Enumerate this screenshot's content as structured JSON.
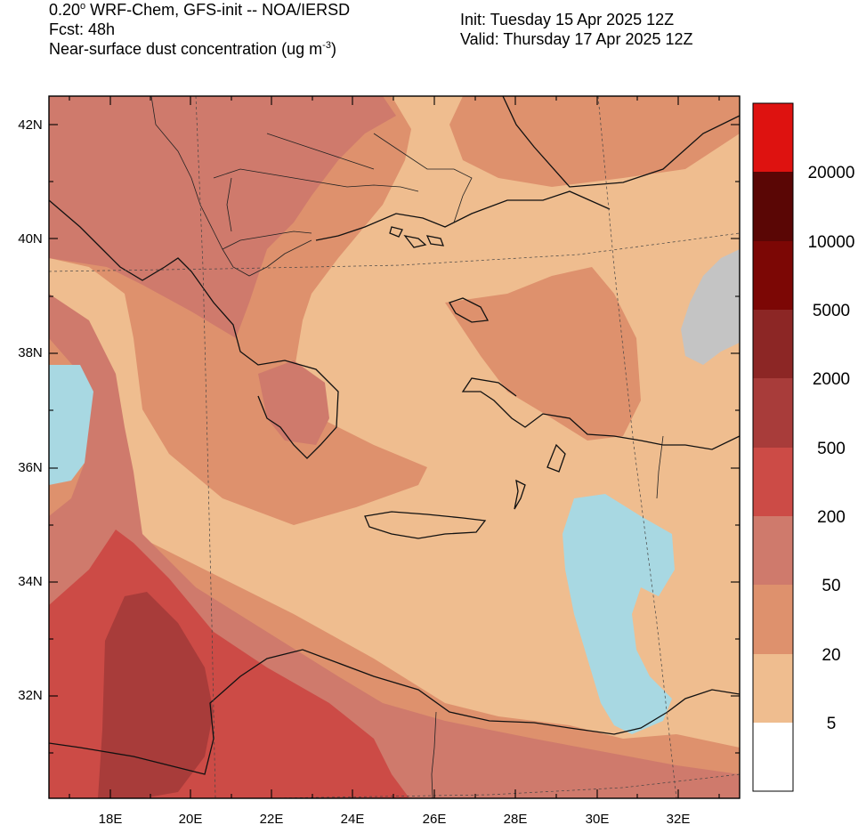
{
  "header": {
    "model_prefix": "0.20",
    "model_deg": "o",
    "model_suffix": " WRF-Chem, GFS-init -- NOA/IERSD",
    "forecast": "Fcst: 48h",
    "variable_prefix": "Near-surface dust concentration (ug m",
    "variable_exp": "-3",
    "variable_suffix": ")",
    "init": "Init: Tuesday 15 Apr 2025  12Z",
    "valid": "Valid: Thursday 17 Apr 2025  12Z"
  },
  "map": {
    "lat_labels": [
      "42N",
      "40N",
      "38N",
      "36N",
      "34N",
      "32N"
    ],
    "lon_labels": [
      "18E",
      "20E",
      "22E",
      "24E",
      "26E",
      "28E",
      "30E",
      "32E"
    ]
  },
  "colorbar": {
    "labels": [
      "20000",
      "10000",
      "5000",
      "2000",
      "500",
      "200",
      "50",
      "20",
      "5"
    ],
    "colors": {
      "lt5": "#ffffff",
      "5_20": "#efbd8f",
      "20_50": "#de916d",
      "50_200": "#cf7a6c",
      "200_500": "#cc4b46",
      "500_2000": "#a83c3a",
      "2000_5000": "#8c2625",
      "5000_10000": "#7c0705",
      "10000_20000": "#5a0605",
      "gt20000": "#de1210"
    },
    "water": "#a8d8e2",
    "missing": "#c4c4c4"
  }
}
